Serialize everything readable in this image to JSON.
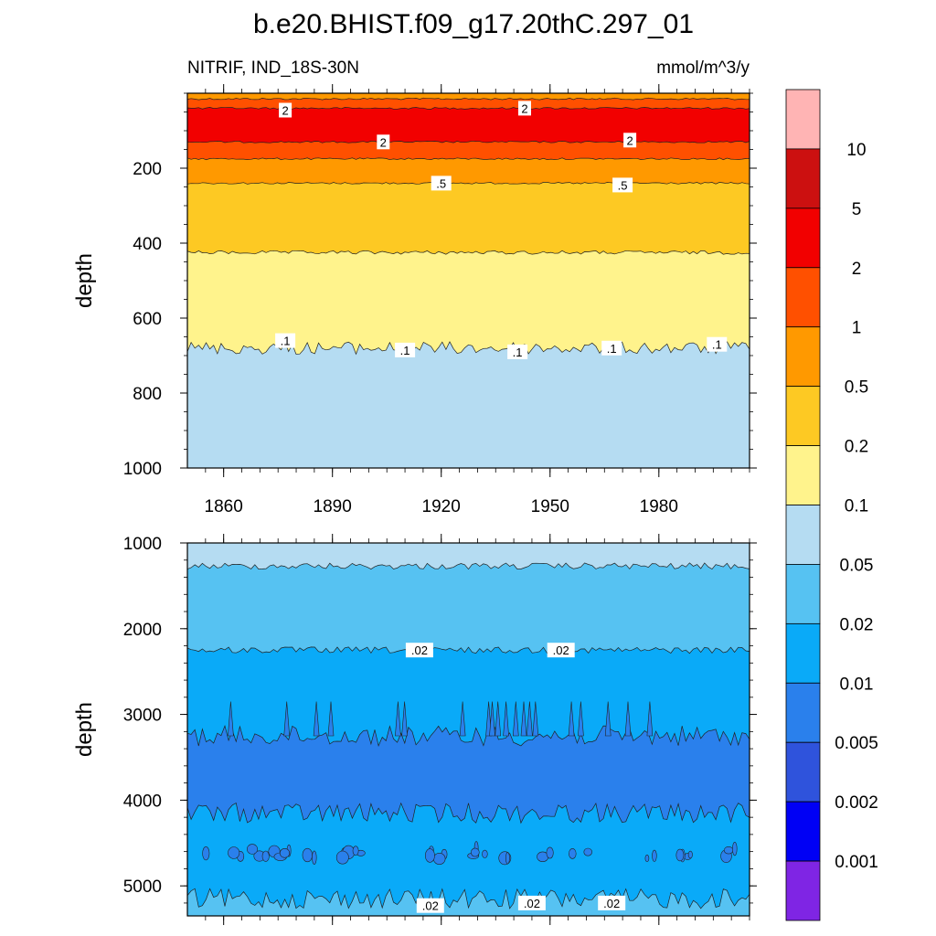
{
  "chart_data": {
    "type": "heatmap",
    "title": "b.e20.BHIST.f09_g17.20thC.297_01",
    "variable": "NITRIF, IND_18S-30N",
    "units": "mmol/m^3/y",
    "ylabel": "depth",
    "x_ticks": [
      "1860",
      "1890",
      "1920",
      "1950",
      "1980"
    ],
    "xlim": [
      1850,
      2005
    ],
    "panels": [
      {
        "name": "upper",
        "ylim": [
          0,
          1000
        ],
        "y_ticks": [
          "200",
          "400",
          "600",
          "800",
          "1000"
        ],
        "bands": [
          {
            "from": 0,
            "to": 15,
            "level": "0.5-1"
          },
          {
            "from": 15,
            "to": 40,
            "level": "1-2"
          },
          {
            "from": 40,
            "to": 130,
            "level": "2-5"
          },
          {
            "from": 130,
            "to": 175,
            "level": "1-2"
          },
          {
            "from": 175,
            "to": 240,
            "level": "0.5-1"
          },
          {
            "from": 240,
            "to": 425,
            "level": "0.2-0.5"
          },
          {
            "from": 425,
            "to": 680,
            "level": "0.1-0.2"
          },
          {
            "from": 680,
            "to": 1000,
            "level": "0.05-0.1"
          }
        ],
        "contour_labels": [
          {
            "text": "2",
            "year": 1877,
            "depth": 45
          },
          {
            "text": "2",
            "year": 1943,
            "depth": 40
          },
          {
            "text": "2",
            "year": 1904,
            "depth": 130
          },
          {
            "text": "2",
            "year": 1972,
            "depth": 125
          },
          {
            "text": ".5",
            "year": 1920,
            "depth": 240
          },
          {
            "text": ".5",
            "year": 1970,
            "depth": 245
          },
          {
            "text": ".1",
            "year": 1877,
            "depth": 660
          },
          {
            "text": ".1",
            "year": 1910,
            "depth": 685
          },
          {
            "text": ".1",
            "year": 1941,
            "depth": 690
          },
          {
            "text": ".1",
            "year": 1967,
            "depth": 680
          },
          {
            "text": ".1",
            "year": 1996,
            "depth": 670
          }
        ]
      },
      {
        "name": "lower",
        "ylim": [
          1000,
          5350
        ],
        "y_ticks": [
          "1000",
          "2000",
          "3000",
          "4000",
          "5000"
        ],
        "bands": [
          {
            "from": 1000,
            "to": 1270,
            "level": "0.05-0.1"
          },
          {
            "from": 1270,
            "to": 2250,
            "level": "0.02-0.05"
          },
          {
            "from": 2250,
            "to": 3250,
            "level": "0.01-0.02"
          },
          {
            "from": 3250,
            "to": 4150,
            "level": "0.005-0.01"
          },
          {
            "from": 4150,
            "to": 5150,
            "level": "0.01-0.02"
          },
          {
            "from": 5150,
            "to": 5350,
            "level": "0.02-0.05"
          }
        ],
        "contour_labels": [
          {
            "text": ".02",
            "year": 1914,
            "depth": 2250
          },
          {
            "text": ".02",
            "year": 1953,
            "depth": 2250
          },
          {
            "text": ".02",
            "year": 1917,
            "depth": 5230
          },
          {
            "text": ".02",
            "year": 1945,
            "depth": 5200
          },
          {
            "text": ".02",
            "year": 1967,
            "depth": 5200
          }
        ]
      }
    ],
    "colorbar": {
      "levels": [
        "10",
        "5",
        "2",
        "1",
        "0.5",
        "0.2",
        "0.1",
        "0.05",
        "0.02",
        "0.01",
        "0.005",
        "0.002",
        "0.001"
      ],
      "colors": [
        "#ffb4b4",
        "#cc1010",
        "#f20000",
        "#ff5000",
        "#ff9900",
        "#fdc923",
        "#fff38c",
        "#b5dcf2",
        "#56c2f2",
        "#0aaaf8",
        "#2a80ec",
        "#2f53dc",
        "#0000f5",
        "#7f25e4"
      ]
    }
  },
  "palette": {
    "0.05-0.1": "#b5dcf2",
    "0.1-0.2": "#fff38c",
    "0.2-0.5": "#fdc923",
    "0.5-1": "#ff9900",
    "1-2": "#ff5000",
    "2-5": "#f20000",
    "0.02-0.05": "#56c2f2",
    "0.01-0.02": "#0aaaf8",
    "0.005-0.01": "#2a80ec"
  }
}
